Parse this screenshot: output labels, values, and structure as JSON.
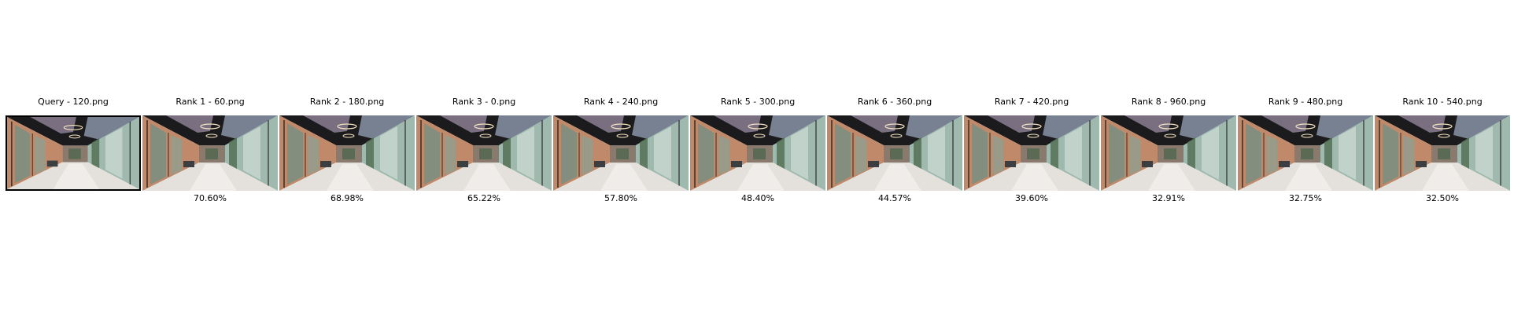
{
  "query": {
    "title": "Query - 120.png"
  },
  "results": [
    {
      "title": "Rank 1 - 60.png",
      "score": "70.60%"
    },
    {
      "title": "Rank 2 - 180.png",
      "score": "68.98%"
    },
    {
      "title": "Rank 3 - 0.png",
      "score": "65.22%"
    },
    {
      "title": "Rank 4 - 240.png",
      "score": "57.80%"
    },
    {
      "title": "Rank 5 - 300.png",
      "score": "48.40%"
    },
    {
      "title": "Rank 6 - 360.png",
      "score": "44.57%"
    },
    {
      "title": "Rank 7 - 420.png",
      "score": "39.60%"
    },
    {
      "title": "Rank 8 - 960.png",
      "score": "32.91%"
    },
    {
      "title": "Rank 9 - 480.png",
      "score": "32.75%"
    },
    {
      "title": "Rank 10 - 540.png",
      "score": "32.50%"
    }
  ]
}
